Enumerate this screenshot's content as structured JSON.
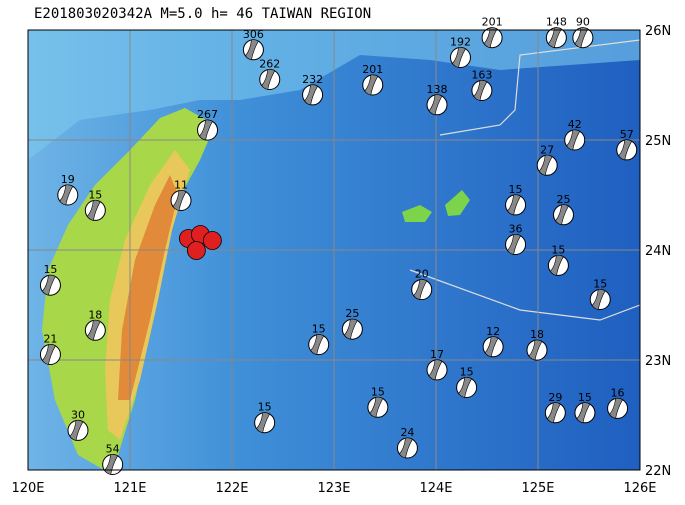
{
  "header": {
    "title": "E201803020342A  M=5.0  h= 46  TAIWAN REGION"
  },
  "map": {
    "lon_ticks": [
      {
        "value": 120,
        "label": "120E"
      },
      {
        "value": 121,
        "label": "121E"
      },
      {
        "value": 122,
        "label": "122E"
      },
      {
        "value": 123,
        "label": "123E"
      },
      {
        "value": 124,
        "label": "124E"
      },
      {
        "value": 125,
        "label": "125E"
      },
      {
        "value": 126,
        "label": "126E"
      }
    ],
    "lat_ticks": [
      {
        "value": 22,
        "label": "22N"
      },
      {
        "value": 23,
        "label": "23N"
      },
      {
        "value": 24,
        "label": "24N"
      },
      {
        "value": 25,
        "label": "25N"
      },
      {
        "value": 26,
        "label": "26N"
      }
    ],
    "main_event": {
      "lon": 121.69,
      "lat": 24.05
    },
    "events": [
      {
        "lon": 122.21,
        "lat": 25.82,
        "depth": "306"
      },
      {
        "lon": 122.37,
        "lat": 25.55,
        "depth": "262"
      },
      {
        "lon": 122.79,
        "lat": 25.41,
        "depth": "232"
      },
      {
        "lon": 123.38,
        "lat": 25.5,
        "depth": "201"
      },
      {
        "lon": 124.55,
        "lat": 25.93,
        "depth": "201"
      },
      {
        "lon": 124.24,
        "lat": 25.75,
        "depth": "192"
      },
      {
        "lon": 125.18,
        "lat": 25.93,
        "depth": "148"
      },
      {
        "lon": 125.44,
        "lat": 25.93,
        "depth": "90"
      },
      {
        "lon": 124.45,
        "lat": 25.45,
        "depth": "163"
      },
      {
        "lon": 124.01,
        "lat": 25.32,
        "depth": "138"
      },
      {
        "lon": 121.76,
        "lat": 25.09,
        "depth": "267"
      },
      {
        "lon": 120.39,
        "lat": 24.5,
        "depth": "19"
      },
      {
        "lon": 120.66,
        "lat": 24.36,
        "depth": "15"
      },
      {
        "lon": 125.87,
        "lat": 24.91,
        "depth": "57"
      },
      {
        "lon": 125.36,
        "lat": 25.0,
        "depth": "42"
      },
      {
        "lon": 125.09,
        "lat": 24.77,
        "depth": "27"
      },
      {
        "lon": 124.78,
        "lat": 24.41,
        "depth": "15"
      },
      {
        "lon": 125.25,
        "lat": 24.32,
        "depth": "25"
      },
      {
        "lon": 124.78,
        "lat": 24.05,
        "depth": "36"
      },
      {
        "lon": 125.2,
        "lat": 23.86,
        "depth": "15"
      },
      {
        "lon": 125.61,
        "lat": 23.55,
        "depth": "15"
      },
      {
        "lon": 124.56,
        "lat": 23.12,
        "depth": "12"
      },
      {
        "lon": 124.99,
        "lat": 23.09,
        "depth": "18"
      },
      {
        "lon": 124.01,
        "lat": 22.91,
        "depth": "17"
      },
      {
        "lon": 124.3,
        "lat": 22.75,
        "depth": "15"
      },
      {
        "lon": 123.43,
        "lat": 22.57,
        "depth": "15"
      },
      {
        "lon": 125.17,
        "lat": 22.52,
        "depth": "29"
      },
      {
        "lon": 125.46,
        "lat": 22.52,
        "depth": "15"
      },
      {
        "lon": 125.78,
        "lat": 22.56,
        "depth": "16"
      },
      {
        "lon": 123.72,
        "lat": 22.2,
        "depth": "24"
      },
      {
        "lon": 122.32,
        "lat": 22.43,
        "depth": "15"
      },
      {
        "lon": 123.86,
        "lat": 23.64,
        "depth": "20"
      },
      {
        "lon": 120.22,
        "lat": 23.05,
        "depth": "21"
      },
      {
        "lon": 120.49,
        "lat": 22.36,
        "depth": "30"
      },
      {
        "lon": 120.83,
        "lat": 22.05,
        "depth": "54"
      },
      {
        "lon": 120.66,
        "lat": 23.27,
        "depth": "18"
      },
      {
        "lon": 120.22,
        "lat": 23.68,
        "depth": "15"
      },
      {
        "lon": 123.18,
        "lat": 23.28,
        "depth": "25"
      },
      {
        "lon": 122.85,
        "lat": 23.14,
        "depth": "15"
      },
      {
        "lon": 121.5,
        "lat": 24.45,
        "depth": "11"
      }
    ]
  }
}
